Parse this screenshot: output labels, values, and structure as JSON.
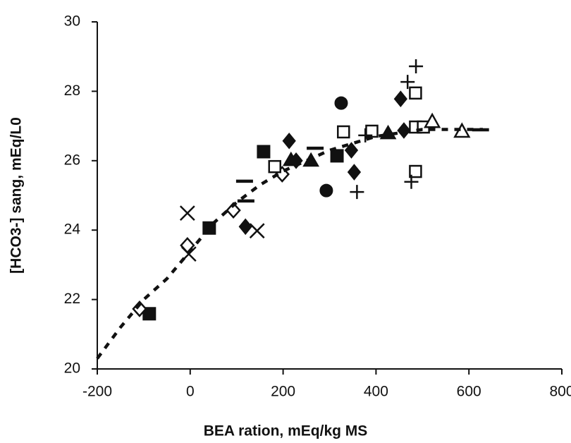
{
  "chart_data": {
    "type": "scatter",
    "x_label": "BEA ration, mEq/kg MS",
    "y_label": "[HCO3-] sang, mEq/L0",
    "xlim": [
      -200,
      800
    ],
    "xticks": [
      -200,
      0,
      200,
      400,
      600,
      800
    ],
    "ylim": [
      20,
      30
    ],
    "yticks": [
      20,
      22,
      24,
      26,
      28,
      30
    ],
    "color": "#111111",
    "series": [
      {
        "marker": "square-filled",
        "x": [
          -88,
          41,
          158,
          316
        ],
        "values": [
          21.59,
          24.06,
          26.26,
          26.14
        ]
      },
      {
        "marker": "diamond-open",
        "x": [
          -109,
          -6,
          93,
          198
        ],
        "values": [
          21.73,
          23.56,
          24.57,
          25.61
        ]
      },
      {
        "marker": "cross",
        "x": [
          -6,
          -3,
          144
        ],
        "values": [
          24.49,
          23.31,
          23.98
        ]
      },
      {
        "marker": "diamond-filled",
        "x": [
          119,
          213,
          228,
          347,
          353,
          453,
          460
        ],
        "values": [
          24.1,
          26.57,
          26.0,
          26.3,
          25.67,
          27.78,
          26.87
        ]
      },
      {
        "marker": "circle-filled",
        "x": [
          325,
          293
        ],
        "values": [
          27.66,
          25.14
        ]
      },
      {
        "marker": "square-open",
        "x": [
          182,
          330,
          391,
          485,
          485,
          485,
          502
        ],
        "values": [
          25.83,
          26.83,
          26.85,
          27.95,
          25.69,
          26.97,
          26.97
        ]
      },
      {
        "marker": "plus",
        "x": [
          359,
          476,
          486,
          468,
          377
        ],
        "values": [
          25.1,
          25.39,
          28.72,
          28.27,
          26.73
        ]
      },
      {
        "marker": "dash",
        "x": [
          117,
          120,
          269,
          625
        ],
        "values": [
          25.41,
          24.84,
          26.36,
          26.89
        ]
      },
      {
        "marker": "triangle-filled",
        "x": [
          217,
          260,
          426
        ],
        "values": [
          26.02,
          26.0,
          26.79
        ]
      },
      {
        "marker": "triangle-open",
        "x": [
          521,
          585
        ],
        "values": [
          27.13,
          26.85
        ]
      },
      {
        "marker": "dotted-line",
        "x": [
          -200,
          -150,
          -100,
          -50,
          0,
          50,
          100,
          150,
          200,
          250,
          300,
          350,
          400,
          450,
          500,
          550,
          600,
          630
        ],
        "values": [
          20.3,
          21.2,
          22.0,
          22.6,
          23.4,
          24.2,
          24.8,
          25.3,
          25.7,
          26.0,
          26.3,
          26.5,
          26.7,
          26.8,
          26.9,
          26.9,
          26.9,
          26.9
        ]
      }
    ]
  }
}
